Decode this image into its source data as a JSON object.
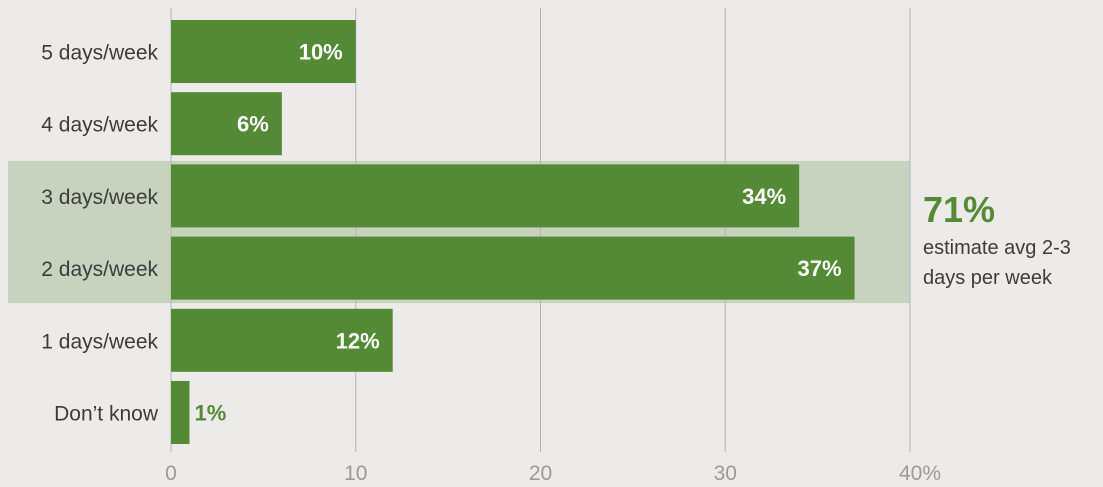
{
  "chart_data": {
    "type": "bar",
    "orientation": "horizontal",
    "categories": [
      "5 days/week",
      "4 days/week",
      "3 days/week",
      "2 days/week",
      "1 days/week",
      "Don’t know"
    ],
    "values": [
      10,
      6,
      34,
      37,
      12,
      1
    ],
    "value_labels": [
      "10%",
      "6%",
      "34%",
      "37%",
      "12%",
      "1%"
    ],
    "xlim": [
      0,
      40
    ],
    "x_ticks": [
      "0",
      "10",
      "20",
      "30",
      "40%"
    ],
    "grid": true,
    "highlight": {
      "categories": [
        "3 days/week",
        "2 days/week"
      ],
      "value": "71%",
      "text_lines": [
        "estimate avg 2-3",
        "days per week"
      ]
    },
    "colors": {
      "bar": "#548a35",
      "highlight_band": "#c7d3be",
      "gridline": "#b4b4b4",
      "background": "#ecebe9",
      "inside_label": "#ffffff",
      "outside_label": "#548a35"
    }
  }
}
